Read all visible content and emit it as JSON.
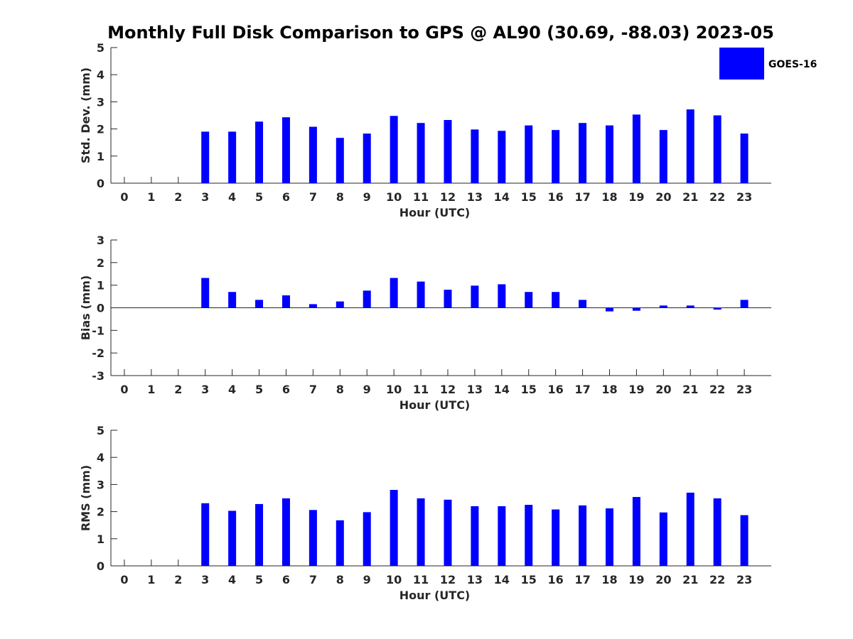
{
  "title": "Monthly Full Disk Comparison to GPS @ AL90 (30.69, -88.03) 2023-05",
  "legend": {
    "label": "GOES-16",
    "color": "#0000ff"
  },
  "chart_data": [
    {
      "type": "bar",
      "title": "",
      "xlabel": "Hour (UTC)",
      "ylabel": "Std. Dev. (mm)",
      "ylim": [
        0,
        5
      ],
      "yticks": [
        0,
        1,
        2,
        3,
        4,
        5
      ],
      "categories": [
        0,
        1,
        2,
        3,
        4,
        5,
        6,
        7,
        8,
        9,
        10,
        11,
        12,
        13,
        14,
        15,
        16,
        17,
        18,
        19,
        20,
        21,
        22,
        23
      ],
      "series": [
        {
          "name": "GOES-16",
          "color": "#0000ff",
          "values": [
            null,
            null,
            null,
            1.9,
            1.9,
            2.27,
            2.43,
            2.08,
            1.67,
            1.83,
            2.48,
            2.22,
            2.33,
            1.98,
            1.93,
            2.13,
            1.96,
            2.22,
            2.13,
            2.53,
            1.96,
            2.72,
            2.5,
            1.83
          ]
        }
      ]
    },
    {
      "type": "bar",
      "title": "",
      "xlabel": "Hour (UTC)",
      "ylabel": "Bias (mm)",
      "ylim": [
        -3,
        3
      ],
      "yticks": [
        -3,
        -2,
        -1,
        0,
        1,
        2,
        3
      ],
      "categories": [
        0,
        1,
        2,
        3,
        4,
        5,
        6,
        7,
        8,
        9,
        10,
        11,
        12,
        13,
        14,
        15,
        16,
        17,
        18,
        19,
        20,
        21,
        22,
        23
      ],
      "series": [
        {
          "name": "GOES-16",
          "color": "#0000ff",
          "values": [
            null,
            null,
            null,
            1.32,
            0.7,
            0.35,
            0.55,
            0.16,
            0.28,
            0.76,
            1.32,
            1.16,
            0.8,
            0.98,
            1.04,
            0.7,
            0.7,
            0.35,
            -0.16,
            -0.13,
            0.1,
            0.1,
            -0.08,
            0.35
          ]
        }
      ]
    },
    {
      "type": "bar",
      "title": "",
      "xlabel": "Hour (UTC)",
      "ylabel": "RMS (mm)",
      "ylim": [
        0,
        5
      ],
      "yticks": [
        0,
        1,
        2,
        3,
        4,
        5
      ],
      "categories": [
        0,
        1,
        2,
        3,
        4,
        5,
        6,
        7,
        8,
        9,
        10,
        11,
        12,
        13,
        14,
        15,
        16,
        17,
        18,
        19,
        20,
        21,
        22,
        23
      ],
      "series": [
        {
          "name": "GOES-16",
          "color": "#0000ff",
          "values": [
            null,
            null,
            null,
            2.31,
            2.03,
            2.28,
            2.49,
            2.06,
            1.68,
            1.98,
            2.8,
            2.49,
            2.44,
            2.2,
            2.2,
            2.25,
            2.08,
            2.23,
            2.12,
            2.54,
            1.97,
            2.7,
            2.49,
            1.87
          ]
        }
      ]
    }
  ]
}
